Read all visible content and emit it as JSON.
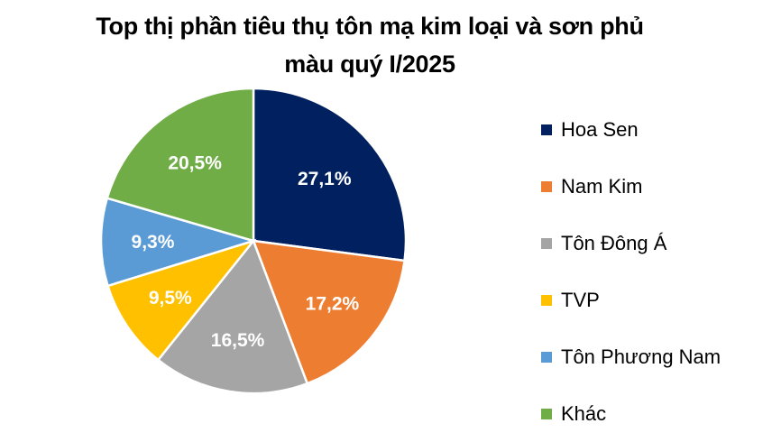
{
  "chart_data": {
    "type": "pie",
    "title": "Top thị phần tiêu thụ tôn mạ kim loại và sơn phủ màu quý I/2025",
    "title_lines": [
      "Top thị phần tiêu thụ tôn mạ kim loại và sơn phủ",
      "màu quý I/2025"
    ],
    "categories": [
      "Hoa Sen",
      "Nam Kim",
      "Tôn Đông Á",
      "TVP",
      "Tôn Phương Nam",
      "Khác"
    ],
    "values": [
      27.1,
      17.2,
      16.5,
      9.5,
      9.3,
      20.5
    ],
    "labels": [
      "27,1%",
      "17,2%",
      "16,5%",
      "9,5%",
      "9,3%",
      "20,5%"
    ],
    "colors": [
      "#002060",
      "#ED7D31",
      "#A5A5A5",
      "#FFC000",
      "#5B9BD5",
      "#70AD47"
    ],
    "start_angle": "12 o'clock",
    "direction": "clockwise",
    "legend_position": "right"
  },
  "legend": {
    "items": [
      {
        "label": "Hoa Sen",
        "color": "#002060"
      },
      {
        "label": "Nam Kim",
        "color": "#ED7D31"
      },
      {
        "label": "Tôn Đông Á",
        "color": "#A5A5A5"
      },
      {
        "label": "TVP",
        "color": "#FFC000"
      },
      {
        "label": "Tôn Phương Nam",
        "color": "#5B9BD5"
      },
      {
        "label": "Khác",
        "color": "#70AD47"
      }
    ]
  }
}
